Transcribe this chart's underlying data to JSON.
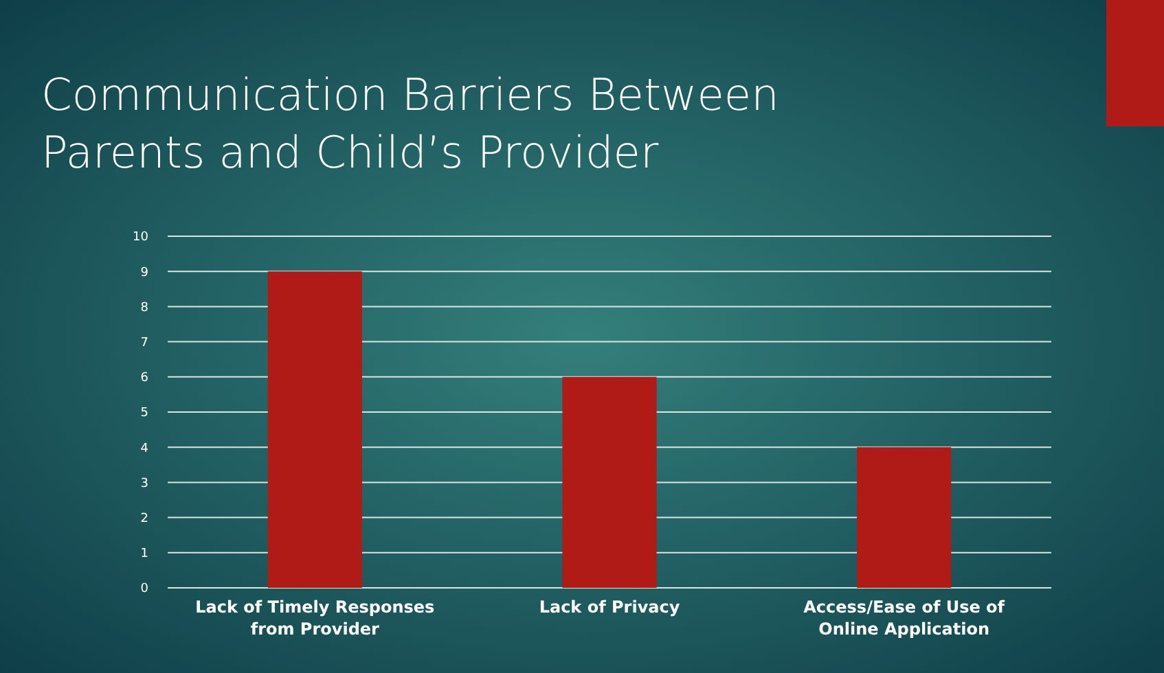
{
  "chart_data": {
    "type": "bar",
    "title": "Communication Barriers Between Parents and Child’s Provider",
    "categories": [
      "Lack of Timely Responses from Provider",
      "Lack of Privacy",
      "Access/Ease of Use of Online Application"
    ],
    "values": [
      9,
      6,
      4
    ],
    "color": "#b01a17",
    "ylim": [
      0,
      10
    ],
    "yticks": [
      0,
      1,
      2,
      3,
      4,
      5,
      6,
      7,
      8,
      9,
      10
    ],
    "grid": "y"
  }
}
